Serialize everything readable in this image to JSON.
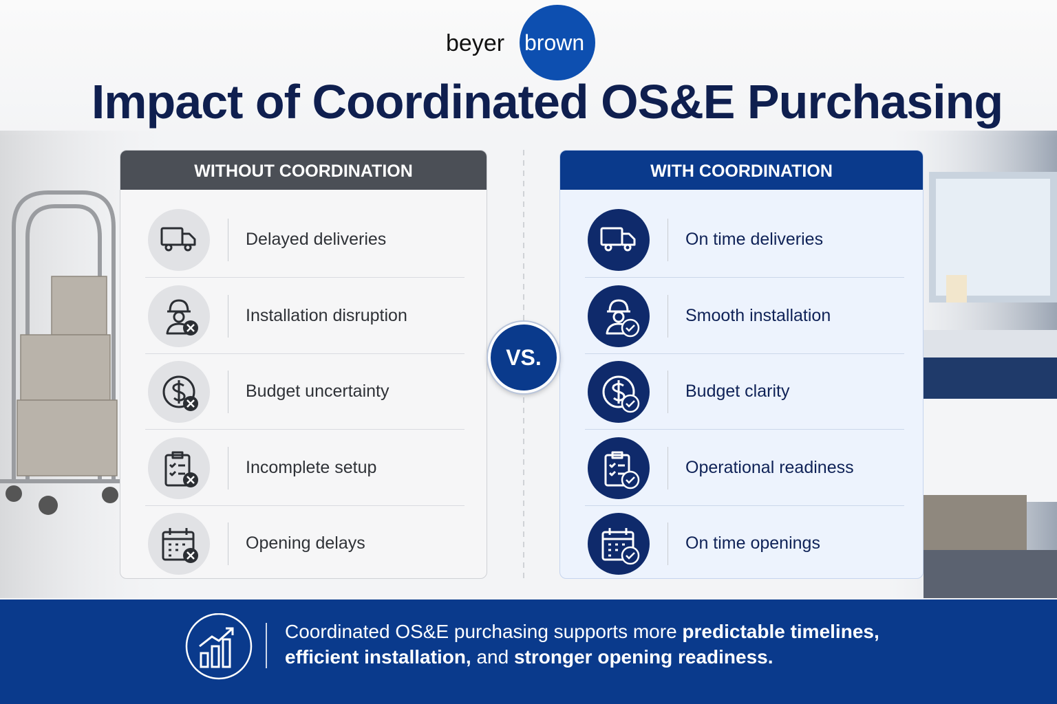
{
  "logo": {
    "left": "beyer",
    "right": "brown"
  },
  "title": "Impact of Coordinated OS&E Purchasing",
  "without": {
    "heading": "WITHOUT COORDINATION",
    "items": [
      "Delayed deliveries",
      "Installation disruption",
      "Budget uncertainty",
      "Incomplete setup",
      "Opening delays"
    ]
  },
  "versus": "VS.",
  "with": {
    "heading": "WITH COORDINATION",
    "items": [
      "On time deliveries",
      "Smooth installation",
      "Budget clarity",
      "Operational readiness",
      "On time openings"
    ]
  },
  "footer": {
    "lines": [
      [
        {
          "text": "Coordinated OS&E purchasing supports more ",
          "bold": false
        },
        {
          "text": "predictable timelines,",
          "bold": true
        }
      ],
      [
        {
          "text": "efficient installation,",
          "bold": true
        },
        {
          "text": " and ",
          "bold": false
        },
        {
          "text": "stronger opening readiness.",
          "bold": true
        }
      ]
    ]
  }
}
